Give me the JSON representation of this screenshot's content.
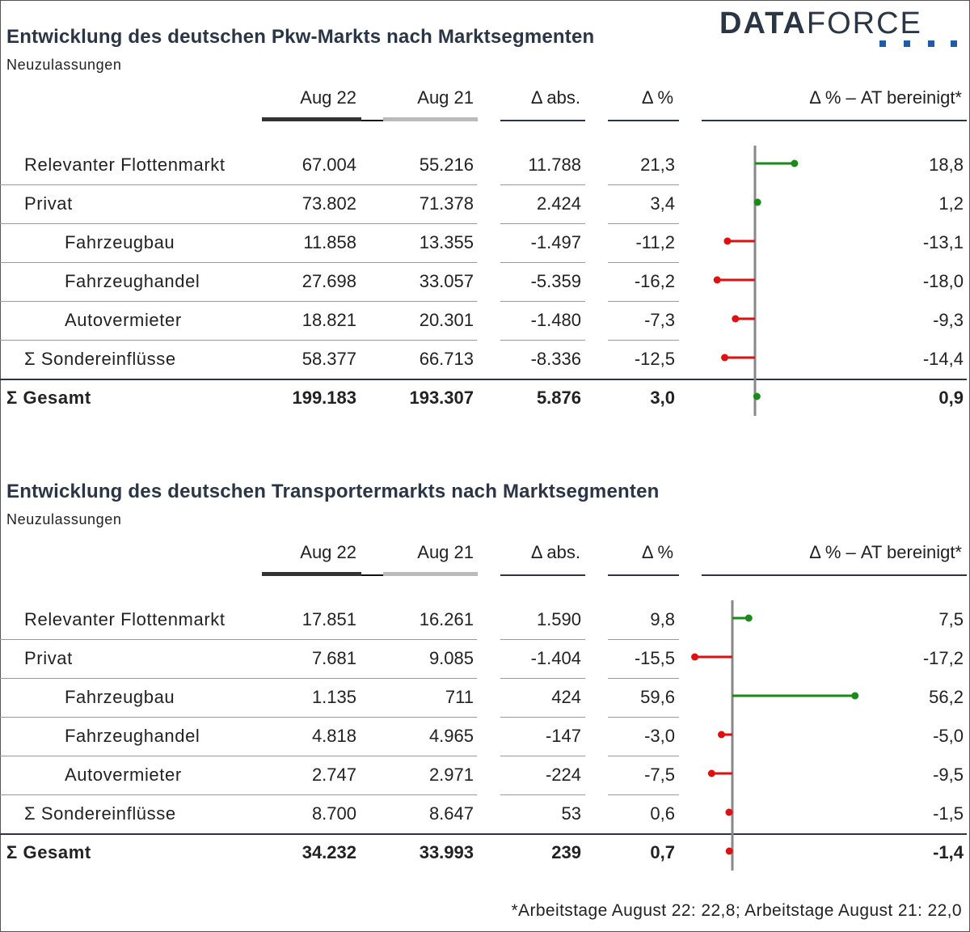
{
  "logo": {
    "bold": "DATA",
    "light": "FORCE"
  },
  "footnote": "*Arbeitstage August 22: 22,8; Arbeitstage August 21: 22,0",
  "colors": {
    "positive": "#1a8a1a",
    "negative": "#e01010",
    "axis": "#888888",
    "aug22_bar": "#333333",
    "aug21_bar": "#bbbbbb"
  },
  "chart_data": [
    {
      "type": "table",
      "title": "Entwicklung des deutschen Pkw-Markts nach Marktsegmenten",
      "subtitle": "Neuzulassungen",
      "columns": [
        "Aug 22",
        "Aug 21",
        "Δ abs.",
        "Δ %",
        "Δ % – AT bereinigt*"
      ],
      "rows": [
        {
          "label": "Relevanter Flottenmarkt",
          "indent": 1,
          "bold": false,
          "aug22": "67.004",
          "aug21": "55.216",
          "abs": "11.788",
          "pct": "21,3",
          "adj": "18,8",
          "adj_value": 18.8
        },
        {
          "label": "Privat",
          "indent": 1,
          "bold": false,
          "aug22": "73.802",
          "aug21": "71.378",
          "abs": "2.424",
          "pct": "3,4",
          "adj": "1,2",
          "adj_value": 1.2
        },
        {
          "label": "Fahrzeugbau",
          "indent": 2,
          "bold": false,
          "aug22": "11.858",
          "aug21": "13.355",
          "abs": "-1.497",
          "pct": "-11,2",
          "adj": "-13,1",
          "adj_value": -13.1
        },
        {
          "label": "Fahrzeughandel",
          "indent": 2,
          "bold": false,
          "aug22": "27.698",
          "aug21": "33.057",
          "abs": "-5.359",
          "pct": "-16,2",
          "adj": "-18,0",
          "adj_value": -18.0
        },
        {
          "label": "Autovermieter",
          "indent": 2,
          "bold": false,
          "aug22": "18.821",
          "aug21": "20.301",
          "abs": "-1.480",
          "pct": "-7,3",
          "adj": "-9,3",
          "adj_value": -9.3
        },
        {
          "label": "Σ Sondereinflüsse",
          "indent": 1,
          "bold": false,
          "aug22": "58.377",
          "aug21": "66.713",
          "abs": "-8.336",
          "pct": "-12,5",
          "adj": "-14,4",
          "adj_value": -14.4
        },
        {
          "label": "Σ Gesamt",
          "indent": 0,
          "bold": true,
          "aug22": "199.183",
          "aug21": "193.307",
          "abs": "5.876",
          "pct": "3,0",
          "adj": "0,9",
          "adj_value": 0.9
        }
      ]
    },
    {
      "type": "table",
      "title": "Entwicklung des deutschen Transportermarkts nach Marktsegmenten",
      "subtitle": "Neuzulassungen",
      "columns": [
        "Aug 22",
        "Aug 21",
        "Δ abs.",
        "Δ %",
        "Δ % – AT bereinigt*"
      ],
      "rows": [
        {
          "label": "Relevanter Flottenmarkt",
          "indent": 1,
          "bold": false,
          "aug22": "17.851",
          "aug21": "16.261",
          "abs": "1.590",
          "pct": "9,8",
          "adj": "7,5",
          "adj_value": 7.5
        },
        {
          "label": "Privat",
          "indent": 1,
          "bold": false,
          "aug22": "7.681",
          "aug21": "9.085",
          "abs": "-1.404",
          "pct": "-15,5",
          "adj": "-17,2",
          "adj_value": -17.2
        },
        {
          "label": "Fahrzeugbau",
          "indent": 2,
          "bold": false,
          "aug22": "1.135",
          "aug21": "711",
          "abs": "424",
          "pct": "59,6",
          "adj": "56,2",
          "adj_value": 56.2
        },
        {
          "label": "Fahrzeughandel",
          "indent": 2,
          "bold": false,
          "aug22": "4.818",
          "aug21": "4.965",
          "abs": "-147",
          "pct": "-3,0",
          "adj": "-5,0",
          "adj_value": -5.0
        },
        {
          "label": "Autovermieter",
          "indent": 2,
          "bold": false,
          "aug22": "2.747",
          "aug21": "2.971",
          "abs": "-224",
          "pct": "-7,5",
          "adj": "-9,5",
          "adj_value": -9.5
        },
        {
          "label": "Σ Sondereinflüsse",
          "indent": 1,
          "bold": false,
          "aug22": "8.700",
          "aug21": "8.647",
          "abs": "53",
          "pct": "0,6",
          "adj": "-1,5",
          "adj_value": -1.5
        },
        {
          "label": "Σ Gesamt",
          "indent": 0,
          "bold": true,
          "aug22": "34.232",
          "aug21": "33.993",
          "abs": "239",
          "pct": "0,7",
          "adj": "-1,4",
          "adj_value": -1.4
        }
      ]
    }
  ]
}
